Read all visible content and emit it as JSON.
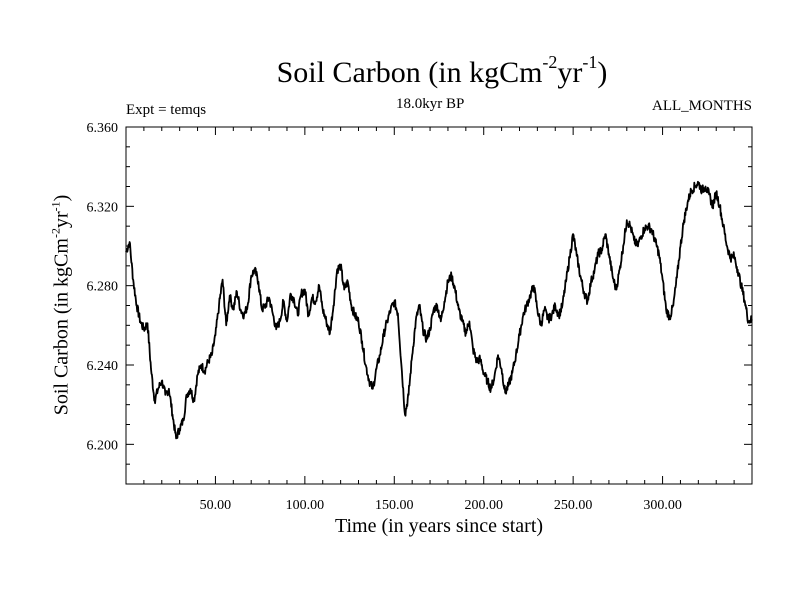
{
  "chart_data": {
    "type": "line",
    "title_main": "Soil Carbon (in kgCm",
    "title_exp1": "-2",
    "title_mid": "yr",
    "title_exp2": "-1",
    "title_close": ")",
    "subtitle": "18.0kyr BP",
    "expt_label": "Expt = temqs",
    "period_label": "ALL_MONTHS",
    "xlabel": "Time (in years since start)",
    "ylabel_main": "Soil Carbon (in kgCm",
    "ylabel_exp1": "-2",
    "ylabel_mid": "yr",
    "ylabel_exp2": "-1",
    "ylabel_close": ")",
    "xlim": [
      0,
      350
    ],
    "ylim": [
      6.18,
      6.36
    ],
    "x_ticks": [
      50,
      100,
      150,
      200,
      250,
      300
    ],
    "x_tick_labels": [
      "50.00",
      "100.00",
      "150.00",
      "200.00",
      "250.00",
      "300.00"
    ],
    "y_ticks": [
      6.2,
      6.24,
      6.28,
      6.32,
      6.36
    ],
    "y_tick_labels": [
      "6.200",
      "6.240",
      "6.280",
      "6.320",
      "6.360"
    ],
    "series": [
      {
        "name": "Soil Carbon",
        "x": [
          0,
          2,
          4,
          6,
          8,
          10,
          12,
          14,
          16,
          18,
          20,
          22,
          24,
          26,
          28,
          30,
          32,
          34,
          36,
          38,
          40,
          42,
          44,
          46,
          48,
          50,
          52,
          54,
          56,
          58,
          60,
          62,
          64,
          66,
          68,
          70,
          72,
          74,
          76,
          78,
          80,
          82,
          84,
          86,
          88,
          90,
          92,
          94,
          96,
          98,
          100,
          102,
          104,
          106,
          108,
          110,
          112,
          114,
          116,
          118,
          120,
          122,
          124,
          126,
          128,
          130,
          132,
          134,
          136,
          138,
          140,
          142,
          144,
          146,
          148,
          150,
          152,
          154,
          156,
          158,
          160,
          162,
          164,
          166,
          168,
          170,
          172,
          174,
          176,
          178,
          180,
          182,
          184,
          186,
          188,
          190,
          192,
          194,
          196,
          198,
          200,
          202,
          204,
          206,
          208,
          210,
          212,
          214,
          216,
          218,
          220,
          222,
          224,
          226,
          228,
          230,
          232,
          234,
          236,
          238,
          240,
          242,
          244,
          246,
          248,
          250,
          252,
          254,
          256,
          258,
          260,
          262,
          264,
          266,
          268,
          270,
          272,
          274,
          276,
          278,
          280,
          282,
          284,
          286,
          288,
          290,
          292,
          294,
          296,
          298,
          300,
          302,
          304,
          306,
          308,
          310,
          312,
          314,
          316,
          318,
          320,
          322,
          324,
          326,
          328,
          330,
          332,
          334,
          336,
          338,
          340,
          342,
          344,
          346,
          348,
          350
        ],
        "values": [
          6.297,
          6.302,
          6.283,
          6.27,
          6.262,
          6.258,
          6.261,
          6.238,
          6.222,
          6.228,
          6.232,
          6.225,
          6.228,
          6.215,
          6.203,
          6.208,
          6.212,
          6.225,
          6.228,
          6.222,
          6.235,
          6.24,
          6.237,
          6.242,
          6.245,
          6.255,
          6.27,
          6.283,
          6.26,
          6.275,
          6.268,
          6.277,
          6.268,
          6.265,
          6.27,
          6.285,
          6.288,
          6.282,
          6.268,
          6.27,
          6.274,
          6.266,
          6.258,
          6.262,
          6.272,
          6.262,
          6.276,
          6.273,
          6.265,
          6.276,
          6.278,
          6.265,
          6.274,
          6.272,
          6.28,
          6.268,
          6.262,
          6.256,
          6.27,
          6.288,
          6.29,
          6.278,
          6.282,
          6.27,
          6.265,
          6.262,
          6.252,
          6.24,
          6.232,
          6.228,
          6.238,
          6.245,
          6.255,
          6.262,
          6.268,
          6.272,
          6.266,
          6.24,
          6.215,
          6.225,
          6.245,
          6.262,
          6.27,
          6.258,
          6.253,
          6.258,
          6.268,
          6.27,
          6.262,
          6.272,
          6.282,
          6.285,
          6.278,
          6.268,
          6.262,
          6.256,
          6.262,
          6.248,
          6.242,
          6.243,
          6.236,
          6.232,
          6.228,
          6.234,
          6.245,
          6.238,
          6.226,
          6.23,
          6.236,
          6.245,
          6.255,
          6.265,
          6.27,
          6.275,
          6.28,
          6.268,
          6.26,
          6.268,
          6.263,
          6.265,
          6.27,
          6.265,
          6.27,
          6.282,
          6.294,
          6.306,
          6.295,
          6.285,
          6.277,
          6.272,
          6.282,
          6.288,
          6.296,
          6.298,
          6.306,
          6.296,
          6.285,
          6.278,
          6.288,
          6.3,
          6.313,
          6.31,
          6.303,
          6.3,
          6.305,
          6.309,
          6.31,
          6.308,
          6.302,
          6.296,
          6.283,
          6.268,
          6.264,
          6.27,
          6.284,
          6.3,
          6.313,
          6.322,
          6.328,
          6.33,
          6.332,
          6.328,
          6.33,
          6.326,
          6.32,
          6.327,
          6.32,
          6.31,
          6.3,
          6.294,
          6.295,
          6.288,
          6.28,
          6.272,
          6.262,
          6.263
        ]
      }
    ]
  }
}
